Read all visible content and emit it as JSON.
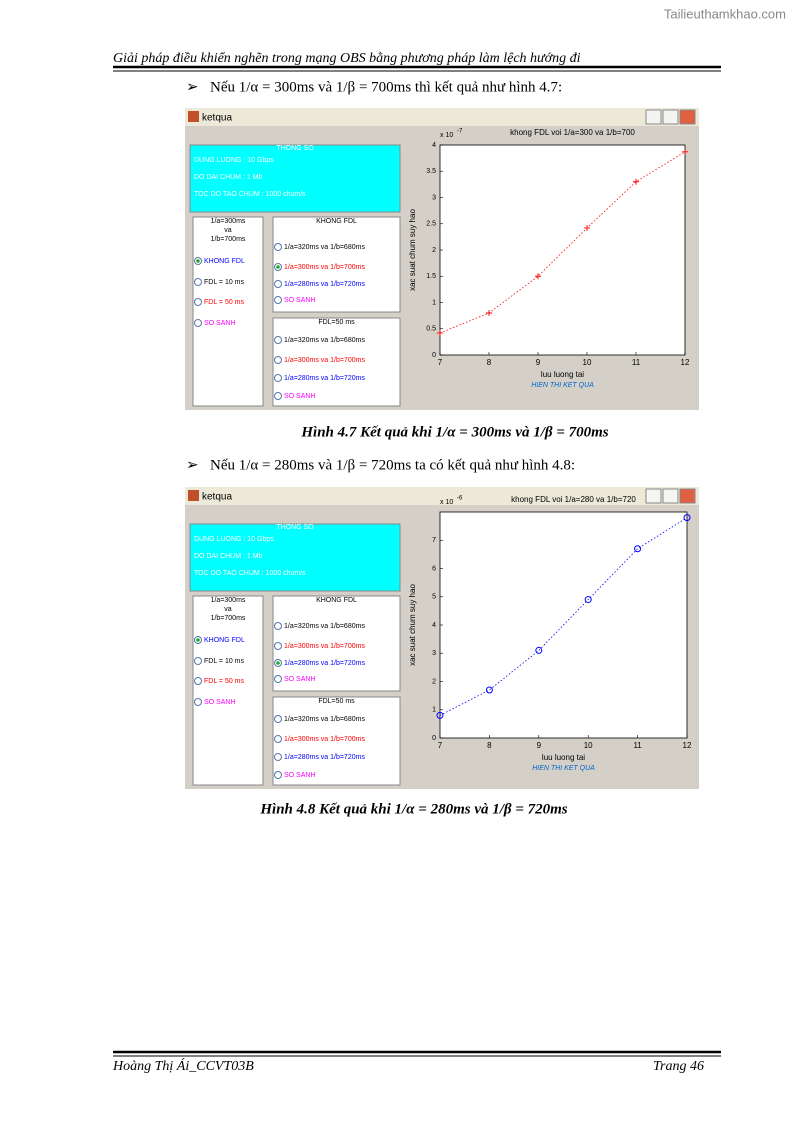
{
  "watermark": "Tailieuthamkhao.com",
  "header": "Giải pháp điều khiển nghẽn trong mạng OBS bằng phương pháp làm lệch hướng đi",
  "paragraphs": [
    "Nếu 1/α = 300ms và 1/β = 700ms  thì kết quả như hình 4.7:",
    "Nếu 1/α = 280ms  và 1/β = 720ms  ta có kết quả như hình 4.8:"
  ],
  "captions": [
    "Hình 4.7 Kết quả khi 1/α = 300ms và 1/β = 700ms",
    "Hình 4.8 Kết quả khi 1/α = 280ms  và 1/β = 720ms"
  ],
  "figures": [
    {
      "window_title": "ketqua",
      "params": {
        "title": "THONG SO",
        "lines": [
          "DUNG LUONG : 10 Gbps",
          "DO DAI CHUM : 1 Mb",
          "TOC DO TAO CHUM : 1000 chum/s"
        ]
      },
      "groups": [
        {
          "title_lines": [
            "1/a=300ms",
            "va",
            "1/b=700ms"
          ],
          "options": [
            "KHONG FDL",
            "FDL = 10 ms",
            "FDL = 50 ms",
            "SO SANH"
          ],
          "colors": [
            "#0000ff",
            "#000000",
            "#ff0000",
            "#ff00ff"
          ],
          "selected": 0
        },
        {
          "title_lines": [
            "KHONG FDL"
          ],
          "options": [
            "1/a=320ms va 1/b=680ms",
            "1/a=300ms va 1/b=700ms",
            "1/a=280ms va 1/b=720ms",
            "SO SANH"
          ],
          "colors": [
            "#000000",
            "#ff0000",
            "#0000ff",
            "#ff00ff"
          ],
          "selected": 1
        },
        {
          "title_lines": [
            "FDL=50 ms"
          ],
          "options": [
            "1/a=320ms va 1/b=680ms",
            "1/a=300ms va 1/b=700ms",
            "1/a=280ms va 1/b=720ms",
            "SO SANH"
          ],
          "colors": [
            "#000000",
            "#ff0000",
            "#0000ff",
            "#ff00ff"
          ],
          "selected": -1
        }
      ],
      "chart": {
        "type": "line",
        "title": "khong FDL voi 1/a=300 va 1/b=700",
        "x_label": "luu luong tai",
        "y_label": "xac suat chum suy hao",
        "y_scale": "x 10",
        "y_exponent": "-7",
        "button": "HIEN THI KET QUA",
        "x": [
          7,
          8,
          9,
          10,
          11,
          12
        ],
        "series": [
          {
            "name": "khong FDL",
            "color": "#ff0000",
            "marker": "plus",
            "values": [
              0.42,
              0.8,
              1.5,
              2.42,
              3.3,
              3.87
            ]
          }
        ],
        "xlim": [
          7,
          12
        ],
        "xticks": [
          7,
          8,
          9,
          10,
          11,
          12
        ],
        "ylim": [
          0,
          4
        ],
        "yticks": [
          0,
          0.5,
          1,
          1.5,
          2,
          2.5,
          3,
          3.5,
          4
        ]
      }
    },
    {
      "window_title": "ketqua",
      "params": {
        "title": "THONG SO",
        "lines": [
          "DUNG LUONG : 10 Gbps",
          "DO DAI CHUM : 1 Mb",
          "TOC DO TAO CHUM : 1000 chum/s"
        ]
      },
      "groups": [
        {
          "title_lines": [
            "1/a=300ms",
            "va",
            "1/b=700ms"
          ],
          "options": [
            "KHONG FDL",
            "FDL = 10 ms",
            "FDL = 50 ms",
            "SO SANH"
          ],
          "colors": [
            "#0000ff",
            "#000000",
            "#ff0000",
            "#ff00ff"
          ],
          "selected": 0
        },
        {
          "title_lines": [
            "KHONG FDL"
          ],
          "options": [
            "1/a=320ms va 1/b=680ms",
            "1/a=300ms va 1/b=700ms",
            "1/a=280ms va 1/b=720ms",
            "SO SANH"
          ],
          "colors": [
            "#000000",
            "#ff0000",
            "#0000ff",
            "#ff00ff"
          ],
          "selected": 2
        },
        {
          "title_lines": [
            "FDL=50 ms"
          ],
          "options": [
            "1/a=320ms va 1/b=680ms",
            "1/a=300ms va 1/b=700ms",
            "1/a=280ms va 1/b=720ms",
            "SO SANH"
          ],
          "colors": [
            "#000000",
            "#ff0000",
            "#0000ff",
            "#ff00ff"
          ],
          "selected": -1
        }
      ],
      "chart": {
        "type": "line",
        "title": "khong FDL voi 1/a=280 va 1/b=720",
        "x_label": "luu luong tai",
        "y_label": "xac suat chum suy hao",
        "y_scale": "x 10",
        "y_exponent": "-6",
        "button": "HIEN THI KET QUA",
        "x": [
          7,
          8,
          9,
          10,
          11,
          12
        ],
        "series": [
          {
            "name": "khong FDL",
            "color": "#0000ff",
            "marker": "circle",
            "values": [
              0.8,
              1.7,
              3.1,
              4.9,
              6.7,
              7.8
            ]
          }
        ],
        "xlim": [
          7,
          12
        ],
        "xticks": [
          7,
          8,
          9,
          10,
          11,
          12
        ],
        "ylim": [
          0,
          8
        ],
        "yticks": [
          0,
          1,
          2,
          3,
          4,
          5,
          6,
          7
        ]
      }
    }
  ],
  "footer": {
    "left": "Hoàng Thị Ái_CCVT03B",
    "right": "Trang 46"
  }
}
